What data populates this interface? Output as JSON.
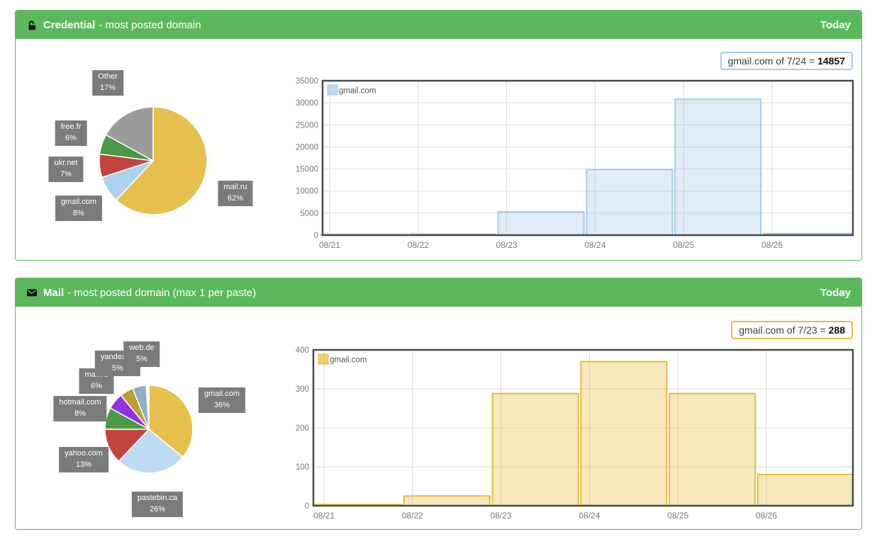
{
  "accent": {
    "green": "#5cb85c",
    "plot_border": "#4a4a4a",
    "grid": "#d9d9d9",
    "label_box": "#7b7b7b"
  },
  "panels": [
    {
      "header": {
        "icon": "unlock-icon",
        "title": "Credential",
        "subtitle": "- most posted domain",
        "right_label": "Today"
      },
      "tooltip": {
        "text": "gmail.com of 7/24 = ",
        "value": "14857",
        "border_color": "#a5cbec"
      }
    },
    {
      "header": {
        "icon": "envelope-icon",
        "title": "Mail",
        "subtitle": "- most posted domain (max 1 per paste)",
        "right_label": "Today"
      },
      "tooltip": {
        "text": "gmail.com of 7/23 = ",
        "value": "288",
        "border_color": "#e4be3c"
      }
    }
  ],
  "chart_data": [
    {
      "panel": "Credential",
      "type": "pie",
      "legend_position": "none",
      "slices": [
        {
          "label": "mail.ru",
          "pct": 62,
          "color": "#e6c04d"
        },
        {
          "label": "gmail.com",
          "pct": 8,
          "color": "#abd0f0"
        },
        {
          "label": "ukr.net",
          "pct": 7,
          "color": "#c2443e"
        },
        {
          "label": "free.fr",
          "pct": 6,
          "color": "#4b9a47"
        },
        {
          "label": "Other",
          "pct": 17,
          "color": "#9c9c9c"
        }
      ]
    },
    {
      "panel": "Credential",
      "type": "bar",
      "legend": "gmail.com",
      "legend_position": "top-left",
      "categories": [
        "08/21",
        "08/22",
        "08/23",
        "08/24",
        "08/25",
        "08/26"
      ],
      "values": [
        200,
        250,
        5300,
        14857,
        30800,
        350
      ],
      "ylim": [
        0,
        35000
      ],
      "yticks": [
        0,
        5000,
        10000,
        15000,
        20000,
        25000,
        30000,
        35000
      ],
      "color": "#a5cbec",
      "grid": true
    },
    {
      "panel": "Mail",
      "type": "pie",
      "legend_position": "none",
      "slices": [
        {
          "label": "gmail.com",
          "pct": 36,
          "color": "#e6c04d"
        },
        {
          "label": "pastebin.ca",
          "pct": 26,
          "color": "#bedbf5"
        },
        {
          "label": "yahoo.com",
          "pct": 13,
          "color": "#c2443e"
        },
        {
          "label": "hotmail.com",
          "pct": 8,
          "color": "#4b9a47"
        },
        {
          "label": "mail.ru",
          "pct": 6,
          "color": "#9232e3"
        },
        {
          "label": "yandex.ru",
          "pct": 5,
          "color": "#bd9e33"
        },
        {
          "label": "web.de",
          "pct": 5,
          "color": "#90aec6"
        }
      ]
    },
    {
      "panel": "Mail",
      "type": "bar",
      "legend": "gmail.com",
      "legend_position": "top-left",
      "categories": [
        "08/21",
        "08/22",
        "08/23",
        "08/24",
        "08/25",
        "08/26"
      ],
      "values": [
        3,
        25,
        288,
        370,
        288,
        80
      ],
      "ylim": [
        0,
        400
      ],
      "yticks": [
        0,
        100,
        200,
        300,
        400
      ],
      "color": "#e4be3c",
      "grid": true
    }
  ]
}
